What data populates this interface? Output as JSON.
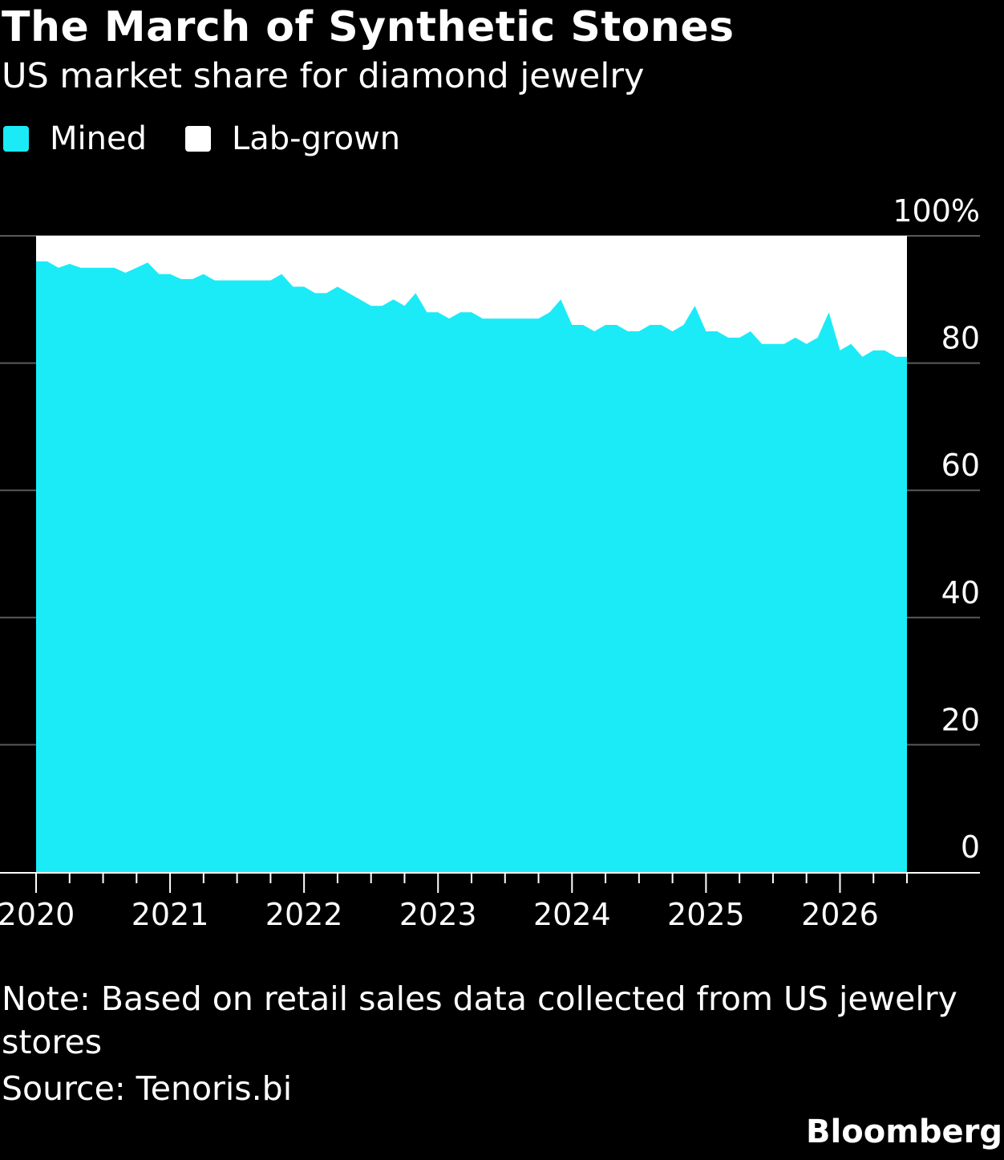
{
  "header": {
    "title": "The March of Synthetic Stones",
    "subtitle": "US market share for diamond jewelry"
  },
  "footer": {
    "note": "Note: Based on retail sales data collected from US jewelry stores",
    "source": "Source: Tenoris.bi",
    "brand": "Bloomberg"
  },
  "colors": {
    "background": "#000000",
    "mined": "#1bebf7",
    "lab_grown": "#ffffff",
    "gridline": "#5a5a5a"
  },
  "chart_data": {
    "type": "area",
    "stacked": true,
    "stack_total": 100,
    "ylim": [
      0,
      100
    ],
    "yticks": [
      0,
      20,
      40,
      60,
      80,
      100
    ],
    "ytick_labels": [
      "0",
      "20",
      "40",
      "60",
      "80",
      "100%"
    ],
    "y_axis_position": "right",
    "xlim": [
      2020.0,
      2026.5
    ],
    "xticks": [
      2020,
      2021,
      2022,
      2023,
      2024,
      2025,
      2026
    ],
    "xtick_labels": [
      "2020",
      "2021",
      "2022",
      "2023",
      "2024",
      "2025",
      "2026"
    ],
    "grid": true,
    "legend_position": "top-left",
    "series": [
      {
        "name": "Mined",
        "color": "#1bebf7",
        "x": [
          2020.0,
          2020.083,
          2020.167,
          2020.25,
          2020.333,
          2020.417,
          2020.5,
          2020.583,
          2020.667,
          2020.75,
          2020.833,
          2020.917,
          2021.0,
          2021.083,
          2021.167,
          2021.25,
          2021.333,
          2021.417,
          2021.5,
          2021.583,
          2021.667,
          2021.75,
          2021.833,
          2021.917,
          2022.0,
          2022.083,
          2022.167,
          2022.25,
          2022.333,
          2022.417,
          2022.5,
          2022.583,
          2022.667,
          2022.75,
          2022.833,
          2022.917,
          2023.0,
          2023.083,
          2023.167,
          2023.25,
          2023.333,
          2023.417,
          2023.5,
          2023.583,
          2023.667,
          2023.75,
          2023.833,
          2023.917,
          2024.0,
          2024.083,
          2024.167,
          2024.25,
          2024.333,
          2024.417,
          2024.5,
          2024.583,
          2024.667,
          2024.75,
          2024.833,
          2024.917,
          2025.0,
          2025.083,
          2025.167,
          2025.25,
          2025.333,
          2025.417,
          2025.5,
          2025.583,
          2025.667,
          2025.75,
          2025.833,
          2025.917,
          2026.0,
          2026.083,
          2026.167,
          2026.25,
          2026.333,
          2026.417,
          2026.5
        ],
        "values": [
          96,
          96,
          95,
          95.6,
          95,
          95,
          95,
          95,
          94.2,
          95,
          95.8,
          94,
          94,
          93.2,
          93.2,
          94,
          93,
          93,
          93,
          93,
          93,
          93,
          94,
          92,
          92,
          91,
          91,
          92,
          91,
          90,
          89,
          89,
          90,
          89,
          91,
          88,
          88,
          87,
          88,
          88,
          87,
          87,
          87,
          87,
          87,
          87,
          88,
          90,
          86,
          86,
          85,
          86,
          86,
          85,
          85,
          86,
          86,
          85,
          86,
          89,
          85,
          85,
          84,
          84,
          85,
          83,
          83,
          83,
          84,
          83,
          84,
          88,
          82,
          83,
          81,
          82,
          82,
          81,
          81
        ]
      },
      {
        "name": "Lab-grown",
        "color": "#ffffff",
        "note": "fills the remainder up to 100%"
      }
    ]
  }
}
